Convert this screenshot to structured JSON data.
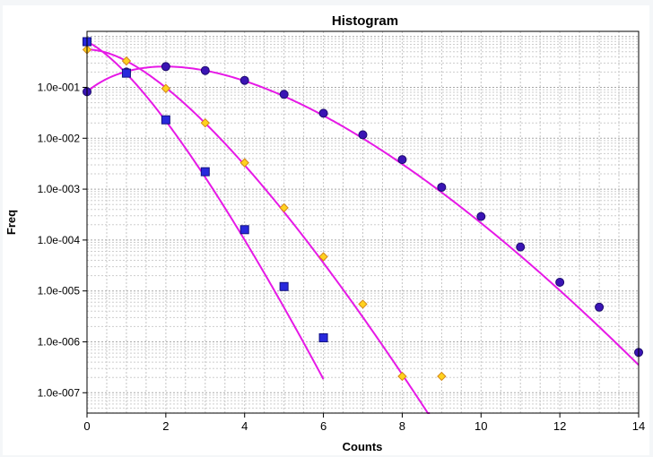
{
  "chart_data": {
    "type": "scatter",
    "title": "Histogram",
    "xlabel": "Counts",
    "ylabel": "Freq",
    "xlim": [
      0,
      14
    ],
    "ylim_log10": [
      -7.4,
      0.1
    ],
    "y_scale": "log",
    "grid": true,
    "x_ticks": [
      0,
      2,
      4,
      6,
      8,
      10,
      12,
      14
    ],
    "y_ticks": [
      {
        "label": "1.0e-001",
        "value": 0.1
      },
      {
        "label": "1.0e-002",
        "value": 0.01
      },
      {
        "label": "1.0e-003",
        "value": 0.001
      },
      {
        "label": "1.0e-004",
        "value": 0.0001
      },
      {
        "label": "1.0e-005",
        "value": 1e-05
      },
      {
        "label": "1.0e-006",
        "value": 1e-06
      },
      {
        "label": "1.0e-007",
        "value": 1e-07
      }
    ],
    "fit_color": "#e619e6",
    "series": [
      {
        "marker": "circle",
        "color": "#3a14b4",
        "edge": "#1c0a6e",
        "points": [
          [
            0,
            0.082
          ],
          [
            1,
            0.2
          ],
          [
            2,
            0.256
          ],
          [
            3,
            0.214
          ],
          [
            4,
            0.137
          ],
          [
            5,
            0.073
          ],
          [
            6,
            0.031
          ],
          [
            7,
            0.0117
          ],
          [
            8,
            0.0038
          ],
          [
            9,
            0.00109
          ],
          [
            10,
            0.00029
          ],
          [
            11,
            7.3e-05
          ],
          [
            12,
            1.48e-05
          ],
          [
            13,
            4.8e-06
          ],
          [
            14,
            6.2e-07
          ]
        ],
        "fit": {
          "kind": "poisson",
          "mean": 2.5,
          "x_range": [
            0,
            14
          ]
        }
      },
      {
        "marker": "diamond",
        "color": "#ffd21e",
        "edge": "#d4881a",
        "points": [
          [
            0,
            0.55
          ],
          [
            1,
            0.33
          ],
          [
            2,
            0.095
          ],
          [
            3,
            0.02
          ],
          [
            4,
            0.0033
          ],
          [
            5,
            0.00043
          ],
          [
            6,
            4.7e-05
          ],
          [
            7,
            5.5e-06
          ],
          [
            8,
            2.1e-07
          ],
          [
            9,
            2.1e-07
          ]
        ],
        "fit": {
          "kind": "poisson",
          "mean": 0.6,
          "x_range": [
            0,
            9
          ]
        }
      },
      {
        "marker": "square",
        "color": "#2828dc",
        "edge": "#121280",
        "points": [
          [
            0,
            0.79
          ],
          [
            1,
            0.19
          ],
          [
            2,
            0.023
          ],
          [
            3,
            0.0022
          ],
          [
            4,
            0.00016
          ],
          [
            5,
            1.22e-05
          ],
          [
            6,
            1.2e-06
          ]
        ],
        "fit": {
          "kind": "poisson",
          "mean": 0.235,
          "x_range": [
            0,
            6
          ]
        }
      }
    ]
  }
}
